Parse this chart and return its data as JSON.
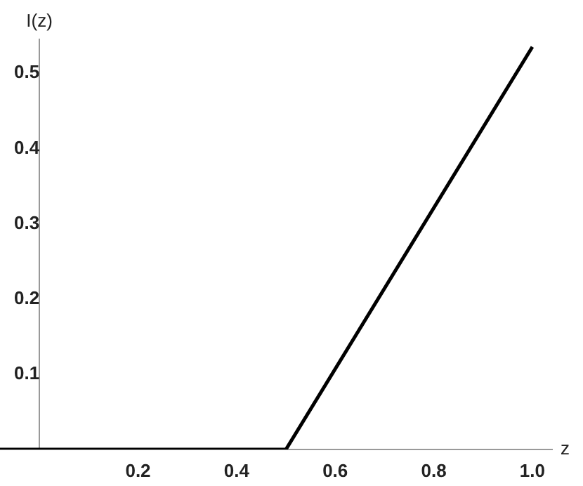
{
  "chart_data": {
    "type": "line",
    "xlabel": "z",
    "ylabel": "I(z)",
    "series": [
      {
        "color": "#000000",
        "x": [
          -0.08,
          0.5,
          1.0
        ],
        "values": [
          0,
          0,
          0.535
        ]
      }
    ],
    "xlim": [
      -0.08,
      1.04
    ],
    "ylim": [
      0,
      0.545
    ],
    "xticks": [
      0.2,
      0.4,
      0.6,
      0.8,
      {
        "value": 1,
        "label": "1.0"
      }
    ],
    "yticks": [
      0.1,
      0.2,
      0.3,
      0.4,
      0.5
    ],
    "grid": false,
    "legend": false,
    "marker": "none",
    "line_style": "solid"
  }
}
